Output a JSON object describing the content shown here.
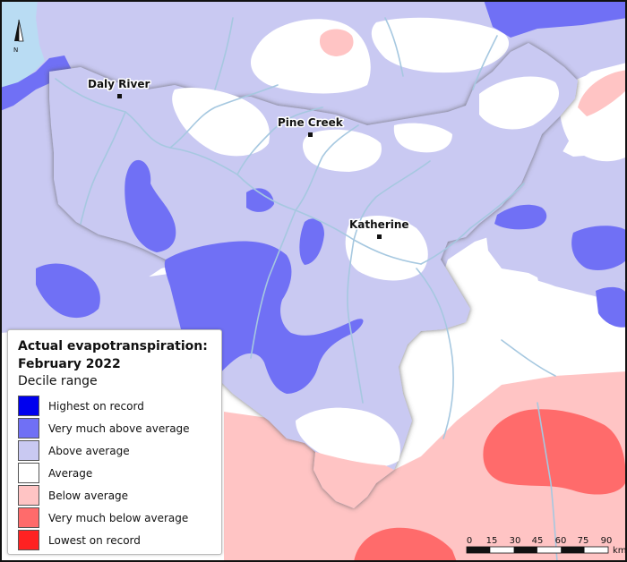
{
  "map": {
    "title_line1": "Actual evapotranspiration:",
    "title_line2": "February 2022",
    "subtitle": "Decile range",
    "north_label": "N",
    "towns": [
      {
        "name": "Daly River"
      },
      {
        "name": "Pine Creek"
      },
      {
        "name": "Katherine"
      }
    ],
    "legend": [
      {
        "label": "Highest on record",
        "color": "#0000ee"
      },
      {
        "label": "Very much above average",
        "color": "#7070f5"
      },
      {
        "label": "Above average",
        "color": "#c9c9f2"
      },
      {
        "label": "Average",
        "color": "#ffffff"
      },
      {
        "label": "Below average",
        "color": "#ffc4c4"
      },
      {
        "label": "Very much below average",
        "color": "#ff6b6b"
      },
      {
        "label": "Lowest on record",
        "color": "#ff2222"
      }
    ],
    "scale": {
      "ticks": [
        "0",
        "15",
        "30",
        "45",
        "60",
        "75",
        "90"
      ],
      "unit": "km"
    },
    "colors": {
      "water": "#b9dcf3",
      "rivers": "#a6c8e0",
      "outside_region_shade": "#9a9a9a"
    }
  }
}
